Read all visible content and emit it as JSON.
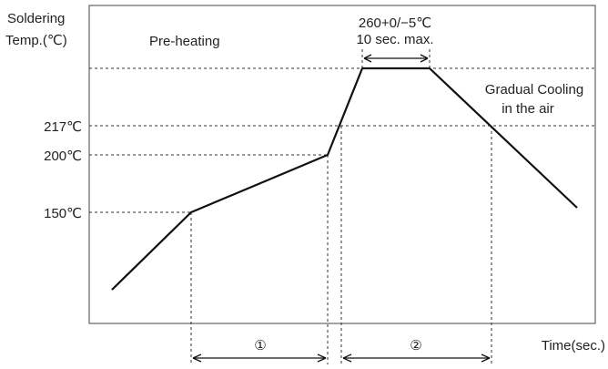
{
  "y_axis_label_line1": "Soldering",
  "y_axis_label_line2": "Temp.(℃)",
  "x_axis_label": "Time(sec.)",
  "temp_labels": [
    "217℃",
    "200℃",
    "150℃"
  ],
  "phase_label": "Pre-heating",
  "peak_label_line1": "260+0/−5℃",
  "peak_label_line2": "10 sec. max.",
  "cooling_label_line1": "Gradual Cooling",
  "cooling_label_line2": "in the air",
  "interval_labels": [
    "①",
    "②"
  ]
}
